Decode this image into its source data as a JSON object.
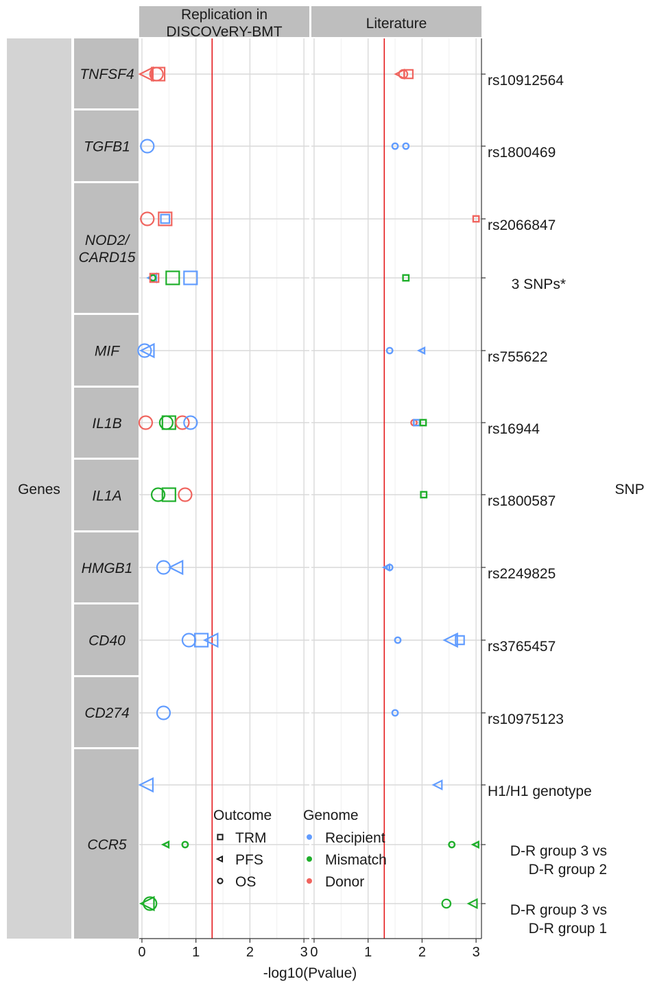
{
  "chart_data": {
    "type": "scatter",
    "xlabel": "-log10(Pvalue)",
    "outer_strip_label": "Genes",
    "right_axis_title": "SNP",
    "panels": [
      {
        "label": "Replication in DISCOVeRY-BMT",
        "label_lines": [
          "Replication in",
          "DISCOVeRY-BMT"
        ],
        "xlim": [
          -0.05,
          3.1
        ],
        "ticks": [
          0,
          1,
          2,
          3
        ],
        "tick_labels": [
          "0",
          "1",
          "2",
          "3"
        ],
        "threshold": 1.3
      },
      {
        "label": "Literature",
        "label_lines": [
          "Literature"
        ],
        "xlim": [
          -0.05,
          3.1
        ],
        "ticks": [
          0,
          1,
          2,
          3
        ],
        "tick_labels": [
          "0",
          "1",
          "2",
          "3"
        ],
        "threshold": 1.3
      }
    ],
    "genes": [
      {
        "name": "TNFSF4",
        "lines": [
          "TNFSF4"
        ]
      },
      {
        "name": "TGFB1",
        "lines": [
          "TGFB1"
        ]
      },
      {
        "name": "NOD2/CARD15",
        "lines": [
          "NOD2/",
          "CARD15"
        ]
      },
      {
        "name": "MIF",
        "lines": [
          "MIF"
        ]
      },
      {
        "name": "IL1B",
        "lines": [
          "IL1B"
        ]
      },
      {
        "name": "IL1A",
        "lines": [
          "IL1A"
        ]
      },
      {
        "name": "HMGB1",
        "lines": [
          "HMGB1"
        ]
      },
      {
        "name": "CD40",
        "lines": [
          "CD40"
        ]
      },
      {
        "name": "CD274",
        "lines": [
          "CD274"
        ]
      },
      {
        "name": "CCR5",
        "lines": [
          "CCR5"
        ]
      }
    ],
    "rows": [
      {
        "id": 0,
        "gene": "TNFSF4",
        "snp": "rs10912564",
        "lines": [
          "rs10912564"
        ]
      },
      {
        "id": 1,
        "gene": "TGFB1",
        "snp": "rs1800469",
        "lines": [
          "rs1800469"
        ]
      },
      {
        "id": 2,
        "gene": "NOD2/CARD15",
        "snp": "rs2066847",
        "lines": [
          "rs2066847"
        ]
      },
      {
        "id": 3,
        "gene": "NOD2/CARD15",
        "snp": "3 SNPs*",
        "lines": [
          "3 SNPs*"
        ]
      },
      {
        "id": 4,
        "gene": "MIF",
        "snp": "rs755622",
        "lines": [
          "rs755622"
        ]
      },
      {
        "id": 5,
        "gene": "IL1B",
        "snp": "rs16944",
        "lines": [
          "rs16944"
        ]
      },
      {
        "id": 6,
        "gene": "IL1A",
        "snp": "rs1800587",
        "lines": [
          "rs1800587"
        ]
      },
      {
        "id": 7,
        "gene": "HMGB1",
        "snp": "rs2249825",
        "lines": [
          "rs2249825"
        ]
      },
      {
        "id": 8,
        "gene": "CD40",
        "snp": "rs3765457",
        "lines": [
          "rs3765457"
        ]
      },
      {
        "id": 9,
        "gene": "CD274",
        "snp": "rs10975123",
        "lines": [
          "rs10975123"
        ]
      },
      {
        "id": 10,
        "gene": "CCR5",
        "snp": "H1/H1 genotype",
        "lines": [
          "H1/H1 genotype"
        ]
      },
      {
        "id": 11,
        "gene": "CCR5",
        "snp": "D-R group 3 vs D-R group 2",
        "lines": [
          "D-R group 3 vs",
          "D-R group 2"
        ]
      },
      {
        "id": 12,
        "gene": "CCR5",
        "snp": "D-R group 3 vs D-R group 1",
        "lines": [
          "D-R group 3 vs",
          "D-R group 1"
        ]
      }
    ],
    "points": [
      {
        "panel": 0,
        "row": 0,
        "x": 0.1,
        "outcome": "PFS",
        "genome": "Donor",
        "size": "large"
      },
      {
        "panel": 0,
        "row": 0,
        "x": 0.3,
        "outcome": "TRM",
        "genome": "Donor",
        "size": "large"
      },
      {
        "panel": 0,
        "row": 0,
        "x": 0.27,
        "outcome": "OS",
        "genome": "Donor",
        "size": "large"
      },
      {
        "panel": 1,
        "row": 0,
        "x": 1.75,
        "outcome": "TRM",
        "genome": "Donor",
        "size": "medium"
      },
      {
        "panel": 1,
        "row": 0,
        "x": 1.65,
        "outcome": "OS",
        "genome": "Donor",
        "size": "medium"
      },
      {
        "panel": 1,
        "row": 0,
        "x": 1.6,
        "outcome": "PFS",
        "genome": "Donor",
        "size": "medium"
      },
      {
        "panel": 0,
        "row": 1,
        "x": 0.1,
        "outcome": "OS",
        "genome": "Recipient",
        "size": "large"
      },
      {
        "panel": 1,
        "row": 1,
        "x": 1.5,
        "outcome": "OS",
        "genome": "Recipient",
        "size": "small"
      },
      {
        "panel": 1,
        "row": 1,
        "x": 1.7,
        "outcome": "OS",
        "genome": "Recipient",
        "size": "small"
      },
      {
        "panel": 0,
        "row": 2,
        "x": 0.1,
        "outcome": "OS",
        "genome": "Donor",
        "size": "large"
      },
      {
        "panel": 0,
        "row": 2,
        "x": 0.43,
        "outcome": "TRM",
        "genome": "Donor",
        "size": "large"
      },
      {
        "panel": 0,
        "row": 2,
        "x": 0.43,
        "outcome": "TRM",
        "genome": "Recipient",
        "size": "medium"
      },
      {
        "panel": 1,
        "row": 2,
        "x": 3.0,
        "outcome": "TRM",
        "genome": "Donor",
        "size": "small"
      },
      {
        "panel": 0,
        "row": 3,
        "x": 0.2,
        "outcome": "PFS",
        "genome": "Recipient",
        "size": "medium"
      },
      {
        "panel": 0,
        "row": 3,
        "x": 0.2,
        "outcome": "OS",
        "genome": "Green",
        "size": "small"
      },
      {
        "panel": 0,
        "row": 3,
        "x": 0.23,
        "outcome": "TRM",
        "genome": "Donor",
        "size": "medium"
      },
      {
        "panel": 0,
        "row": 3,
        "x": 0.57,
        "outcome": "TRM",
        "genome": "Mismatch",
        "size": "large"
      },
      {
        "panel": 0,
        "row": 3,
        "x": 0.9,
        "outcome": "TRM",
        "genome": "Recipient",
        "size": "large"
      },
      {
        "panel": 1,
        "row": 3,
        "x": 1.7,
        "outcome": "TRM",
        "genome": "Mismatch",
        "size": "small"
      },
      {
        "panel": 0,
        "row": 4,
        "x": 0.05,
        "outcome": "OS",
        "genome": "Recipient",
        "size": "large"
      },
      {
        "panel": 0,
        "row": 4,
        "x": 0.12,
        "outcome": "PFS",
        "genome": "Recipient",
        "size": "large"
      },
      {
        "panel": 1,
        "row": 4,
        "x": 1.4,
        "outcome": "OS",
        "genome": "Recipient",
        "size": "small"
      },
      {
        "panel": 1,
        "row": 4,
        "x": 2.0,
        "outcome": "PFS",
        "genome": "Recipient",
        "size": "small"
      },
      {
        "panel": 0,
        "row": 5,
        "x": 0.07,
        "outcome": "OS",
        "genome": "Donor",
        "size": "large"
      },
      {
        "panel": 0,
        "row": 5,
        "x": 0.45,
        "outcome": "OS",
        "genome": "Mismatch",
        "size": "large"
      },
      {
        "panel": 0,
        "row": 5,
        "x": 0.5,
        "outcome": "TRM",
        "genome": "Mismatch",
        "size": "large"
      },
      {
        "panel": 0,
        "row": 5,
        "x": 0.75,
        "outcome": "OS",
        "genome": "Donor",
        "size": "large"
      },
      {
        "panel": 0,
        "row": 5,
        "x": 0.9,
        "outcome": "OS",
        "genome": "Recipient",
        "size": "large"
      },
      {
        "panel": 1,
        "row": 5,
        "x": 1.85,
        "outcome": "OS",
        "genome": "Donor",
        "size": "small"
      },
      {
        "panel": 1,
        "row": 5,
        "x": 1.9,
        "outcome": "TRM",
        "genome": "Recipient",
        "size": "small"
      },
      {
        "panel": 1,
        "row": 5,
        "x": 2.02,
        "outcome": "TRM",
        "genome": "Mismatch",
        "size": "small"
      },
      {
        "panel": 0,
        "row": 6,
        "x": 0.3,
        "outcome": "OS",
        "genome": "Mismatch",
        "size": "large"
      },
      {
        "panel": 0,
        "row": 6,
        "x": 0.5,
        "outcome": "TRM",
        "genome": "Mismatch",
        "size": "large"
      },
      {
        "panel": 0,
        "row": 6,
        "x": 0.8,
        "outcome": "OS",
        "genome": "Donor",
        "size": "large"
      },
      {
        "panel": 1,
        "row": 6,
        "x": 2.03,
        "outcome": "TRM",
        "genome": "Mismatch",
        "size": "small"
      },
      {
        "panel": 0,
        "row": 7,
        "x": 0.4,
        "outcome": "OS",
        "genome": "Recipient",
        "size": "large"
      },
      {
        "panel": 0,
        "row": 7,
        "x": 0.65,
        "outcome": "PFS",
        "genome": "Recipient",
        "size": "large"
      },
      {
        "panel": 1,
        "row": 7,
        "x": 1.35,
        "outcome": "PFS",
        "genome": "Recipient",
        "size": "small"
      },
      {
        "panel": 1,
        "row": 7,
        "x": 1.4,
        "outcome": "OS",
        "genome": "Recipient",
        "size": "small"
      },
      {
        "panel": 0,
        "row": 8,
        "x": 0.87,
        "outcome": "OS",
        "genome": "Recipient",
        "size": "large"
      },
      {
        "panel": 0,
        "row": 8,
        "x": 1.1,
        "outcome": "TRM",
        "genome": "Recipient",
        "size": "large"
      },
      {
        "panel": 0,
        "row": 8,
        "x": 1.3,
        "outcome": "PFS",
        "genome": "Recipient",
        "size": "large"
      },
      {
        "panel": 1,
        "row": 8,
        "x": 1.55,
        "outcome": "OS",
        "genome": "Recipient",
        "size": "small"
      },
      {
        "panel": 1,
        "row": 8,
        "x": 2.55,
        "outcome": "PFS",
        "genome": "Recipient",
        "size": "large"
      },
      {
        "panel": 1,
        "row": 8,
        "x": 2.7,
        "outcome": "TRM",
        "genome": "Recipient",
        "size": "medium"
      },
      {
        "panel": 0,
        "row": 9,
        "x": 0.4,
        "outcome": "OS",
        "genome": "Recipient",
        "size": "large"
      },
      {
        "panel": 1,
        "row": 9,
        "x": 1.5,
        "outcome": "OS",
        "genome": "Recipient",
        "size": "small"
      },
      {
        "panel": 0,
        "row": 10,
        "x": 0.1,
        "outcome": "PFS",
        "genome": "Recipient",
        "size": "large"
      },
      {
        "panel": 1,
        "row": 10,
        "x": 2.3,
        "outcome": "PFS",
        "genome": "Recipient",
        "size": "medium"
      },
      {
        "panel": 0,
        "row": 11,
        "x": 0.45,
        "outcome": "PFS",
        "genome": "Mismatch",
        "size": "small"
      },
      {
        "panel": 0,
        "row": 11,
        "x": 0.8,
        "outcome": "OS",
        "genome": "Mismatch",
        "size": "small"
      },
      {
        "panel": 1,
        "row": 11,
        "x": 2.55,
        "outcome": "OS",
        "genome": "Mismatch",
        "size": "small"
      },
      {
        "panel": 1,
        "row": 11,
        "x": 3.0,
        "outcome": "PFS",
        "genome": "Mismatch",
        "size": "small"
      },
      {
        "panel": 0,
        "row": 12,
        "x": 0.12,
        "outcome": "PFS",
        "genome": "Mismatch",
        "size": "large"
      },
      {
        "panel": 0,
        "row": 12,
        "x": 0.15,
        "outcome": "OS",
        "genome": "Mismatch",
        "size": "large"
      },
      {
        "panel": 1,
        "row": 12,
        "x": 2.45,
        "outcome": "OS",
        "genome": "Mismatch",
        "size": "medium"
      },
      {
        "panel": 1,
        "row": 12,
        "x": 2.95,
        "outcome": "PFS",
        "genome": "Mismatch",
        "size": "medium"
      }
    ],
    "legend": {
      "placement": "inside bottom-center",
      "outcome": {
        "title": "Outcome",
        "items": [
          {
            "label": "TRM",
            "shape": "square"
          },
          {
            "label": "PFS",
            "shape": "triangle-left"
          },
          {
            "label": "OS",
            "shape": "circle"
          }
        ]
      },
      "genome": {
        "title": "Genome",
        "items": [
          {
            "label": "Recipient",
            "color": "#619CFF"
          },
          {
            "label": "Mismatch",
            "color": "#1FAF2B"
          },
          {
            "label": "Donor",
            "color": "#F0645E"
          }
        ]
      }
    },
    "colors": {
      "Recipient": "#619CFF",
      "Mismatch": "#1FAF2B",
      "Green": "#1FAF2B",
      "Donor": "#F0645E",
      "threshold": "#E41A1C",
      "strip": "#BEBEBE",
      "gene_strip_outer": "#D3D3D3",
      "grid": "#D9D9D9"
    },
    "grid": true
  }
}
